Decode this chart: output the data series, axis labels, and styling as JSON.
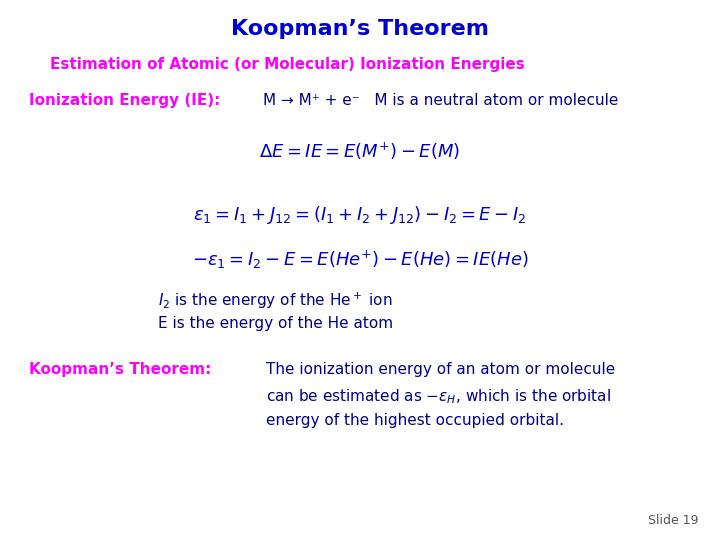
{
  "title": "Koopman’s Theorem",
  "title_color": "#0000CC",
  "title_fontsize": 16,
  "subtitle": "Estimation of Atomic (or Molecular) Ionization Energies",
  "subtitle_color": "#FF00FF",
  "subtitle_fontsize": 11,
  "ie_label": "Ionization Energy (IE):",
  "ie_label_color": "#FF00FF",
  "ie_label_fontsize": 11,
  "ie_text": "M → M⁺ + e⁻   M is a neutral atom or molecule",
  "ie_text_color": "#00008B",
  "ie_text_fontsize": 11,
  "eq_color": "#0000CC",
  "eq_fontsize": 13,
  "note_color": "#00008B",
  "note_fontsize": 11,
  "kt_label": "Koopman’s Theorem:",
  "kt_label_color": "#FF00FF",
  "kt_label_fontsize": 11,
  "kt_text1": "The ionization energy of an atom or molecule",
  "kt_text2_end": ", which is the orbital",
  "kt_text3": "energy of the highest occupied orbital.",
  "kt_text_color": "#00008B",
  "kt_text_fontsize": 11,
  "slide_label": "Slide 19",
  "slide_fontsize": 9,
  "slide_color": "#555555",
  "bg_color": "#FFFFFF"
}
